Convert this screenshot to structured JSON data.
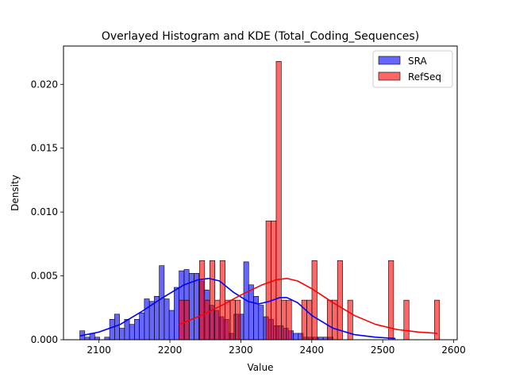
{
  "chart_data": {
    "type": "histogram",
    "title": "Overlayed Histogram and KDE (Total_Coding_Sequences)",
    "xlabel": "Value",
    "ylabel": "Density",
    "xlim": [
      2050,
      2605
    ],
    "ylim": [
      0,
      0.023
    ],
    "x_ticks": [
      2100,
      2200,
      2300,
      2400,
      2500,
      2600
    ],
    "y_ticks": [
      0.0,
      0.005,
      0.01,
      0.015,
      0.02
    ],
    "x_tick_labels": [
      "2100",
      "2200",
      "2300",
      "2400",
      "2500",
      "2600"
    ],
    "y_tick_labels": [
      "0.000",
      "0.005",
      "0.010",
      "0.015",
      "0.020"
    ],
    "legend_position": "top-right",
    "series": [
      {
        "name": "SRA",
        "color": "#0000ff",
        "bin_start": 2073,
        "bin_width": 7.0,
        "densities": [
          0.0007,
          0.0002,
          0.0005,
          0.0002,
          0.0,
          0.0002,
          0.0016,
          0.002,
          0.0009,
          0.0016,
          0.0012,
          0.0016,
          0.0021,
          0.0032,
          0.003,
          0.0034,
          0.0058,
          0.0032,
          0.0023,
          0.0041,
          0.0054,
          0.0055,
          0.0052,
          0.0052,
          0.0046,
          0.0039,
          0.0027,
          0.0023,
          0.0018,
          0.0016,
          0.0005,
          0.002,
          0.002,
          0.0061,
          0.0043,
          0.0034,
          0.0027,
          0.0018,
          0.0016,
          0.0011,
          0.0011,
          0.0009,
          0.0007,
          0.0005,
          0.0005,
          0.0002,
          0.0002,
          0.0002,
          0.0002,
          0.0002,
          0.0002
        ],
        "kde": {
          "x": [
            2073,
            2100,
            2130,
            2160,
            2190,
            2220,
            2240,
            2255,
            2270,
            2290,
            2310,
            2325,
            2340,
            2355,
            2365,
            2380,
            2400,
            2430,
            2460,
            2490,
            2518
          ],
          "y": [
            0.0003,
            0.0006,
            0.0012,
            0.0022,
            0.0033,
            0.0043,
            0.0047,
            0.0048,
            0.0046,
            0.0037,
            0.003,
            0.0028,
            0.003,
            0.0033,
            0.0033,
            0.0029,
            0.0019,
            0.0009,
            0.0004,
            0.0002,
            0.0001
          ]
        }
      },
      {
        "name": "RefSeq",
        "color": "#ff0000",
        "bin_start": 2213,
        "bin_width": 7.2,
        "densities": [
          0.0031,
          0.0031,
          0.0,
          0.0,
          0.0062,
          0.0031,
          0.0062,
          0.0031,
          0.0062,
          0.0031,
          0.0031,
          0.0031,
          0.0,
          0.0,
          0.0,
          0.0,
          0.0,
          0.0093,
          0.0093,
          0.0218,
          0.0031,
          0.0031,
          0.0,
          0.0,
          0.0031,
          0.0031,
          0.0062,
          0.0,
          0.0,
          0.0031,
          0.0031,
          0.0062,
          0.0,
          0.0031,
          0.0,
          0.0,
          0.0,
          0.0,
          0.0,
          0.0,
          0.0,
          0.0062,
          0.0,
          0.0,
          0.0031,
          0.0,
          0.0,
          0.0,
          0.0,
          0.0,
          0.0031,
          0.0,
          0.0,
          0.0,
          0.0,
          0.0,
          0.0,
          0.0,
          0.0,
          0.0,
          0.0,
          0.0,
          0.0,
          0.0,
          0.0,
          0.0,
          0.0,
          0.0,
          0.0,
          0.0,
          0.0,
          0.0,
          0.0,
          0.0,
          0.0,
          0.0,
          0.0,
          0.0,
          0.0,
          0.0,
          0.0,
          0.0,
          0.0,
          0.0,
          0.0,
          0.0,
          0.0,
          0.0,
          0.0,
          0.0,
          0.0,
          0.0,
          0.0,
          0.0,
          0.0,
          0.0,
          0.0,
          0.0,
          0.0,
          0.0,
          0.0,
          0.0,
          0.0,
          0.0,
          0.0,
          0.0,
          0.0,
          0.0,
          0.0,
          0.0,
          0.0,
          0.0,
          0.0,
          0.0,
          0.0,
          0.0,
          0.0,
          0.0,
          0.0,
          0.0,
          0.0,
          0.0,
          0.0,
          0.0,
          0.0,
          0.0,
          0.0,
          0.0,
          0.0,
          0.0,
          0.0,
          0.0,
          0.0,
          0.0,
          0.0,
          0.0,
          0.0,
          0.0,
          0.0,
          0.0,
          0.0,
          0.0,
          0.0,
          0.0,
          0.0,
          0.0,
          0.0,
          0.0,
          0.0
        ],
        "kde": {
          "x": [
            2213,
            2240,
            2270,
            2300,
            2330,
            2350,
            2365,
            2380,
            2400,
            2430,
            2460,
            2490,
            2520,
            2550,
            2577
          ],
          "y": [
            0.0012,
            0.0018,
            0.0026,
            0.0035,
            0.0043,
            0.0047,
            0.0048,
            0.0046,
            0.004,
            0.0029,
            0.0019,
            0.0012,
            0.0008,
            0.0006,
            0.0005
          ]
        }
      }
    ]
  }
}
